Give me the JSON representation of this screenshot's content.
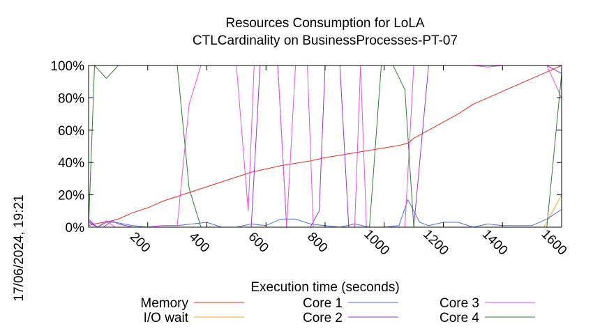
{
  "chart_data": {
    "type": "line",
    "title": "Resources Consumption for LoLA",
    "subtitle": "CTLCardinality on BusinessProcesses-PT-07",
    "xlabel": "Execution time (seconds)",
    "ylabel": "",
    "side_label": "17/06/2024, 19:21",
    "xlim": [
      0,
      1600
    ],
    "ylim": [
      0,
      100
    ],
    "xticks": [
      200,
      400,
      600,
      800,
      1000,
      1200,
      1400,
      1600
    ],
    "xtick_labels": [
      "200",
      "400",
      "600",
      "800",
      "1000",
      "1200",
      "1400",
      "1600"
    ],
    "yticks": [
      0,
      20,
      40,
      60,
      80,
      100
    ],
    "ytick_labels": [
      "0%",
      "20%",
      "40%",
      "60%",
      "80%",
      "100%"
    ],
    "legend_position": "bottom",
    "series": [
      {
        "name": "Memory",
        "color": "#e8281e",
        "x": [
          0,
          20,
          50,
          80,
          100,
          150,
          200,
          250,
          300,
          350,
          400,
          450,
          500,
          550,
          600,
          650,
          700,
          750,
          800,
          850,
          900,
          950,
          1000,
          1050,
          1080,
          1100,
          1150,
          1200,
          1250,
          1300,
          1350,
          1400,
          1450,
          1500,
          1550,
          1600
        ],
        "y": [
          1,
          2,
          3,
          4,
          5,
          9,
          12,
          16,
          19,
          22,
          25,
          28,
          31,
          34,
          36,
          38,
          39.5,
          41,
          43,
          44.5,
          46,
          47.5,
          49,
          50.5,
          52,
          55,
          60,
          65,
          70,
          76,
          80,
          84,
          88,
          92,
          96,
          100
        ]
      },
      {
        "name": "I/O wait",
        "color": "#f5a623",
        "x": [
          0,
          100,
          200,
          300,
          400,
          500,
          600,
          700,
          800,
          900,
          1000,
          1100,
          1200,
          1300,
          1400,
          1500,
          1540,
          1600
        ],
        "y": [
          0,
          0,
          0,
          0,
          0,
          0,
          0,
          0,
          0,
          0,
          0,
          0,
          0,
          0,
          0,
          0,
          0,
          20
        ]
      },
      {
        "name": "Core 1",
        "color": "#4a72d6",
        "x": [
          0,
          30,
          60,
          90,
          120,
          150,
          200,
          250,
          300,
          350,
          400,
          450,
          500,
          550,
          600,
          650,
          700,
          750,
          800,
          850,
          900,
          950,
          1000,
          1050,
          1080,
          1120,
          1150,
          1200,
          1250,
          1300,
          1350,
          1400,
          1450,
          1500,
          1550,
          1600
        ],
        "y": [
          3,
          0,
          3,
          3,
          2,
          1,
          0,
          1,
          1,
          2,
          3,
          0,
          0,
          2,
          1,
          5,
          5,
          2,
          1,
          0,
          2,
          0,
          0,
          1,
          17,
          3,
          1,
          3,
          3,
          0,
          2,
          1,
          1,
          1,
          5,
          11
        ]
      },
      {
        "name": "Core 2",
        "color": "#9b30e0",
        "x": [
          0,
          30,
          50,
          80,
          100,
          150,
          200,
          250,
          300,
          350,
          400,
          450,
          500,
          550,
          580,
          610,
          640,
          670,
          700,
          750,
          780,
          800,
          830,
          850,
          880,
          900,
          950,
          1000,
          1050,
          1100,
          1150,
          1200,
          1250,
          1300,
          1350,
          1400,
          1450,
          1500,
          1550,
          1600
        ],
        "y": [
          4,
          0,
          0,
          4,
          2,
          0,
          0,
          0,
          0,
          0,
          0,
          0,
          0,
          0,
          100,
          100,
          100,
          0,
          0,
          0,
          10,
          100,
          100,
          100,
          0,
          0,
          0,
          0,
          0,
          0,
          100,
          100,
          100,
          100,
          100,
          100,
          100,
          100,
          100,
          95
        ]
      },
      {
        "name": "Core 3",
        "color": "#e84fe8",
        "x": [
          0,
          30,
          60,
          90,
          120,
          150,
          200,
          250,
          300,
          340,
          380,
          400,
          450,
          500,
          540,
          560,
          600,
          640,
          670,
          700,
          740,
          760,
          790,
          820,
          860,
          900,
          920,
          940,
          980,
          1000,
          1040,
          1070,
          1100,
          1150,
          1200,
          1250,
          1300,
          1350,
          1400,
          1450,
          1500,
          1550,
          1600
        ],
        "y": [
          5,
          0,
          4,
          0,
          0,
          0,
          0,
          1,
          1,
          76,
          100,
          100,
          100,
          100,
          10,
          100,
          100,
          100,
          0,
          100,
          100,
          0,
          0,
          0,
          0,
          0,
          100,
          0,
          0,
          0,
          0,
          0,
          100,
          100,
          100,
          100,
          100,
          99,
          100,
          100,
          100,
          100,
          80
        ]
      },
      {
        "name": "Core 4",
        "color": "#2e7d32",
        "x": [
          0,
          20,
          60,
          100,
          150,
          200,
          250,
          300,
          340,
          380,
          400,
          450,
          500,
          550,
          600,
          650,
          700,
          750,
          800,
          850,
          900,
          950,
          990,
          1030,
          1070,
          1100,
          1150,
          1200,
          1250,
          1300,
          1350,
          1400,
          1450,
          1500,
          1550,
          1600
        ],
        "y": [
          0,
          100,
          92,
          100,
          100,
          100,
          100,
          100,
          24,
          0,
          0,
          0,
          0,
          0,
          0,
          0,
          0,
          0,
          0,
          0,
          0,
          0,
          100,
          100,
          85,
          0,
          0,
          0,
          0,
          0,
          0,
          0,
          0,
          0,
          0,
          95
        ]
      }
    ]
  }
}
